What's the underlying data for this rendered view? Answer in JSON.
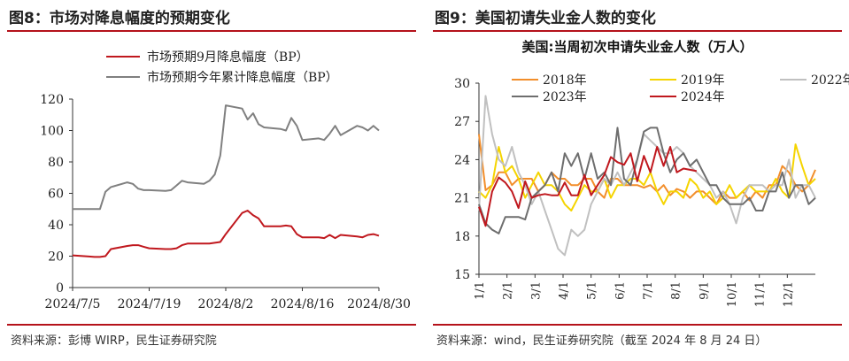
{
  "left_panel": {
    "figure_title": "图8：市场对降息幅度的预期变化",
    "source": "资料来源：彭博 WIRP，民生证券研究院"
  },
  "right_panel": {
    "figure_title": "图9：美国初请失业金人数的变化",
    "source": "资料来源：wind，民生证券研究院（截至 2024 年 8 月 24 日）"
  },
  "chart_data": [
    {
      "type": "line",
      "title": "",
      "xlabel": "",
      "ylabel": "",
      "ylim": [
        0,
        120
      ],
      "yticks": [
        0,
        20,
        40,
        60,
        80,
        100,
        120
      ],
      "x_tick_labels": [
        "2024/7/5",
        "2024/7/19",
        "2024/8/2",
        "2024/8/16",
        "2024/8/30"
      ],
      "x_start": "2024/7/5",
      "x_end": "2024/8/30",
      "grid": false,
      "legend_position": "top-left",
      "series": [
        {
          "name": "市场预期9月降息幅度（BP）",
          "color": "#c0181e",
          "x": [
            "2024/7/5",
            "2024/7/8",
            "2024/7/9",
            "2024/7/10",
            "2024/7/11",
            "2024/7/12",
            "2024/7/15",
            "2024/7/16",
            "2024/7/17",
            "2024/7/18",
            "2024/7/19",
            "2024/7/22",
            "2024/7/23",
            "2024/7/24",
            "2024/7/25",
            "2024/7/26",
            "2024/7/29",
            "2024/7/30",
            "2024/7/31",
            "2024/8/1",
            "2024/8/2",
            "2024/8/5",
            "2024/8/6",
            "2024/8/7",
            "2024/8/8",
            "2024/8/9",
            "2024/8/12",
            "2024/8/13",
            "2024/8/14",
            "2024/8/15",
            "2024/8/16",
            "2024/8/19",
            "2024/8/20",
            "2024/8/21",
            "2024/8/22",
            "2024/8/23",
            "2024/8/26",
            "2024/8/27",
            "2024/8/28",
            "2024/8/29",
            "2024/8/30"
          ],
          "values": [
            20.5,
            19.8,
            19.5,
            19.5,
            20,
            24.5,
            26.5,
            27,
            27,
            26,
            25,
            24.5,
            24.5,
            25,
            27,
            28,
            28,
            28,
            28.5,
            29,
            34,
            47.5,
            49,
            46,
            44,
            39,
            39,
            39.5,
            39,
            34,
            32,
            32,
            31.5,
            33.5,
            31.5,
            33.5,
            32.5,
            32,
            33.5,
            34,
            33
          ]
        },
        {
          "name": "市场预期今年累计降息幅度（BP）",
          "color": "#808080",
          "x": [
            "2024/7/5",
            "2024/7/8",
            "2024/7/9",
            "2024/7/10",
            "2024/7/11",
            "2024/7/12",
            "2024/7/15",
            "2024/7/16",
            "2024/7/17",
            "2024/7/18",
            "2024/7/19",
            "2024/7/22",
            "2024/7/23",
            "2024/7/24",
            "2024/7/25",
            "2024/7/26",
            "2024/7/29",
            "2024/7/30",
            "2024/7/31",
            "2024/8/1",
            "2024/8/2",
            "2024/8/5",
            "2024/8/6",
            "2024/8/7",
            "2024/8/8",
            "2024/8/9",
            "2024/8/12",
            "2024/8/13",
            "2024/8/14",
            "2024/8/15",
            "2024/8/16",
            "2024/8/19",
            "2024/8/20",
            "2024/8/21",
            "2024/8/22",
            "2024/8/23",
            "2024/8/26",
            "2024/8/27",
            "2024/8/28",
            "2024/8/29",
            "2024/8/30"
          ],
          "values": [
            50,
            50,
            50,
            50,
            61,
            64,
            67,
            66,
            63,
            62,
            62,
            61.5,
            62,
            65,
            68,
            67,
            66,
            68,
            72,
            84,
            116,
            114,
            107,
            111,
            104,
            102,
            101,
            100,
            108,
            103,
            94,
            95,
            94,
            98,
            103,
            97,
            103,
            102,
            100,
            103,
            100
          ]
        }
      ]
    },
    {
      "type": "line",
      "title": "美国:当周初次申请失业金人数（万人）",
      "xlabel": "",
      "ylabel": "",
      "ylim": [
        15,
        30
      ],
      "yticks": [
        15,
        18,
        21,
        24,
        27,
        30
      ],
      "x_tick_labels": [
        "1/1",
        "2/1",
        "3/1",
        "4/1",
        "5/1",
        "6/1",
        "7/1",
        "8/1",
        "9/1",
        "10/1",
        "11/1",
        "12/1"
      ],
      "x_unit": "week",
      "grid": false,
      "legend_position": "top",
      "series": [
        {
          "name": "2018年",
          "color": "#f28e2b",
          "x": [
            1,
            2,
            3,
            4,
            5,
            6,
            7,
            8,
            9,
            10,
            11,
            12,
            13,
            14,
            15,
            16,
            17,
            18,
            19,
            20,
            21,
            22,
            23,
            24,
            25,
            26,
            27,
            28,
            29,
            30,
            31,
            32,
            33,
            34,
            35,
            36,
            37,
            38,
            39,
            40,
            41,
            42,
            43,
            44,
            45,
            46,
            47,
            48,
            49,
            50,
            51,
            52
          ],
          "values": [
            26,
            21.6,
            22,
            23,
            23,
            22,
            22.5,
            22.5,
            22.5,
            21.5,
            22,
            23,
            22.5,
            22.5,
            22,
            22,
            22.5,
            22.5,
            21.5,
            21,
            22.5,
            22.5,
            22,
            22,
            22,
            21.8,
            22,
            21.5,
            22,
            21.2,
            21.7,
            21.5,
            21,
            21.5,
            21.5,
            21,
            20.5,
            21.5,
            21,
            21,
            21.5,
            20.8,
            21.5,
            21,
            22,
            22,
            23.5,
            23,
            22,
            21.5,
            22,
            23.2
          ]
        },
        {
          "name": "2019年",
          "color": "#f5d400",
          "x": [
            1,
            2,
            3,
            4,
            5,
            6,
            7,
            8,
            9,
            10,
            11,
            12,
            13,
            14,
            15,
            16,
            17,
            18,
            19,
            20,
            21,
            22,
            23,
            24,
            25,
            26,
            27,
            28,
            29,
            30,
            31,
            32,
            33,
            34,
            35,
            36,
            37,
            38,
            39,
            40,
            41,
            42,
            43,
            44,
            45,
            46,
            47,
            48,
            49,
            50,
            51,
            52
          ],
          "values": [
            21.5,
            21,
            22,
            25,
            23,
            23.5,
            22.5,
            21,
            22,
            23,
            22,
            22,
            21.5,
            20.5,
            20,
            21,
            22,
            21.5,
            21.5,
            22.5,
            21,
            22,
            22,
            22.5,
            22.5,
            22,
            23,
            21.5,
            20.5,
            21.5,
            21.5,
            21,
            22.5,
            22,
            21,
            21.5,
            20.5,
            21,
            22,
            21,
            21.5,
            22,
            21.5,
            21.5,
            21.5,
            22.5,
            21.5,
            21,
            25.2,
            23.5,
            22,
            22.5
          ]
        },
        {
          "name": "2022年",
          "color": "#c0c0c0",
          "x": [
            1,
            2,
            3,
            4,
            5,
            6,
            7,
            8,
            9,
            10,
            11,
            12,
            13,
            14,
            15,
            16,
            17,
            18,
            19,
            20,
            21,
            22,
            23,
            24,
            25,
            26,
            27,
            28,
            29,
            30,
            31,
            32,
            33,
            34,
            35,
            36,
            37,
            38,
            39,
            40,
            41,
            42,
            43,
            44,
            45,
            46,
            47,
            48,
            49,
            50,
            51,
            52
          ],
          "values": [
            20,
            29,
            26,
            24,
            23.5,
            25,
            23,
            22,
            20.5,
            21.5,
            20,
            18.5,
            17,
            16.5,
            18.5,
            18,
            18.5,
            20.5,
            21.5,
            22.5,
            22,
            23,
            22,
            23,
            24,
            26,
            25.5,
            25,
            24.5,
            24.5,
            25,
            24.5,
            23.5,
            23,
            22.5,
            22,
            21,
            21.5,
            20.5,
            19,
            21,
            22,
            22,
            22,
            21.5,
            22,
            22,
            24,
            21,
            22,
            22,
            21
          ]
        },
        {
          "name": "2023年",
          "color": "#6e6e6e",
          "x": [
            1,
            2,
            3,
            4,
            5,
            6,
            7,
            8,
            9,
            10,
            11,
            12,
            13,
            14,
            15,
            16,
            17,
            18,
            19,
            20,
            21,
            22,
            23,
            24,
            25,
            26,
            27,
            28,
            29,
            30,
            31,
            32,
            33,
            34,
            35,
            36,
            37,
            38,
            39,
            40,
            41,
            42,
            43,
            44,
            45,
            46,
            47,
            48,
            49,
            50,
            51,
            52
          ],
          "values": [
            20.5,
            19,
            18.5,
            18.2,
            19.5,
            19.5,
            19.5,
            19.3,
            21,
            21.5,
            22,
            23,
            21.5,
            24.5,
            23.5,
            24.5,
            22.5,
            24.5,
            22.5,
            23,
            22,
            26.5,
            22.5,
            22,
            24,
            26.2,
            26.5,
            26.5,
            24.5,
            23,
            24,
            24.5,
            23.5,
            24,
            23,
            22,
            22,
            21,
            20.5,
            20.5,
            20.5,
            21,
            20,
            20,
            21.5,
            21.5,
            23,
            21,
            22,
            22,
            20.5,
            21
          ]
        },
        {
          "name": "2024年",
          "color": "#c0181e",
          "x": [
            1,
            2,
            3,
            4,
            5,
            6,
            7,
            8,
            9,
            10,
            11,
            12,
            13,
            14,
            15,
            16,
            17,
            18,
            19,
            20,
            21,
            22,
            23,
            24,
            25,
            26,
            27,
            28,
            29,
            30,
            31,
            32,
            33,
            34
          ],
          "values": [
            20.3,
            18.8,
            21.5,
            22.6,
            22.2,
            21.5,
            20.2,
            22.3,
            21,
            21.2,
            21.3,
            21.2,
            21.2,
            22.2,
            21.2,
            21.2,
            22.8,
            21.2,
            22,
            22.8,
            24.2,
            23.8,
            23.6,
            24.5,
            22.3,
            24.3,
            23,
            25,
            23.5,
            25,
            23,
            23.3,
            23.2,
            23.1
          ]
        }
      ]
    }
  ]
}
